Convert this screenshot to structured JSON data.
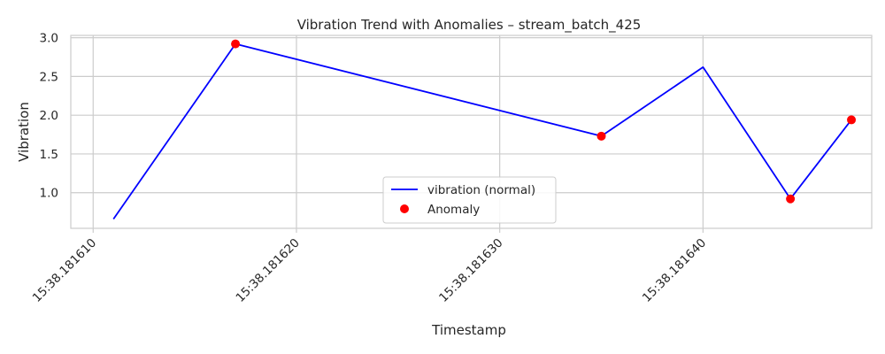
{
  "chart_data": {
    "type": "line",
    "title": "Vibration Trend with Anomalies – stream_batch_425",
    "xlabel": "Timestamp",
    "ylabel": "Vibration",
    "x_tick_labels": [
      "15:38.181610",
      "15:38.181620",
      "15:38.181630",
      "15:38.181640"
    ],
    "x_tick_values": [
      181610,
      181620,
      181630,
      181640
    ],
    "y_tick_labels": [
      "1.0",
      "1.5",
      "2.0",
      "2.5",
      "3.0"
    ],
    "y_tick_values": [
      1.0,
      1.5,
      2.0,
      2.5,
      3.0
    ],
    "xlim": [
      181608.9,
      181648.3
    ],
    "ylim": [
      0.54,
      3.03
    ],
    "grid": true,
    "legend_position": "bottom-center",
    "series": [
      {
        "name": "vibration (normal)",
        "kind": "line",
        "color": "#0000ff",
        "x": [
          181611,
          181617,
          181635,
          181640,
          181644.3,
          181647.3
        ],
        "y": [
          0.66,
          2.92,
          1.73,
          2.62,
          0.92,
          1.94
        ]
      },
      {
        "name": "Anomaly",
        "kind": "scatter",
        "color": "#ff0000",
        "x": [
          181617,
          181635,
          181644.3,
          181647.3
        ],
        "y": [
          2.92,
          1.73,
          0.92,
          1.94
        ]
      }
    ]
  }
}
